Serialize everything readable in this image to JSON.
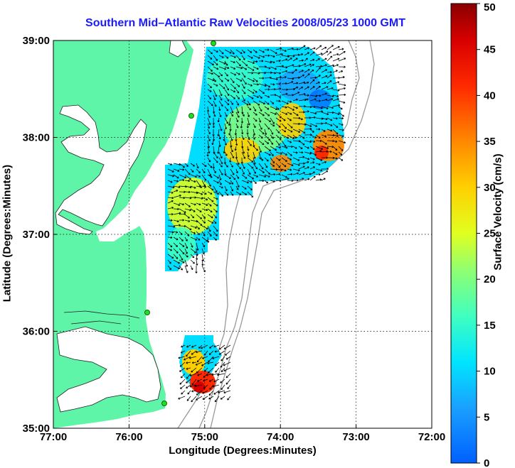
{
  "title": "Southern Mid–Atlantic Raw Velocities 2008/05/23 1000 GMT",
  "xlabel": "Longitude (Degrees:Minutes)",
  "ylabel": "Latitude (Degrees:Minutes)",
  "colorbar_label": "Surface Velocity (cm/s)",
  "x_ticks": [
    "77:00",
    "76:00",
    "75:00",
    "74:00",
    "73:00",
    "72:00"
  ],
  "y_ticks": [
    "39:00",
    "38:00",
    "37:00",
    "36:00",
    "35:00"
  ],
  "colorbar_ticks": [
    "50",
    "45",
    "40",
    "35",
    "30",
    "25",
    "20",
    "15",
    "10",
    "5",
    "0"
  ],
  "colors": {
    "land": "#5ff5a8",
    "title": "#1a1aff",
    "contour": "#999999"
  },
  "chart_data": {
    "type": "heatmap",
    "x_range_lon": [
      -77,
      -72
    ],
    "y_range_lat": [
      35,
      39
    ],
    "colorbar_range": [
      0,
      50
    ],
    "grid": true
  }
}
